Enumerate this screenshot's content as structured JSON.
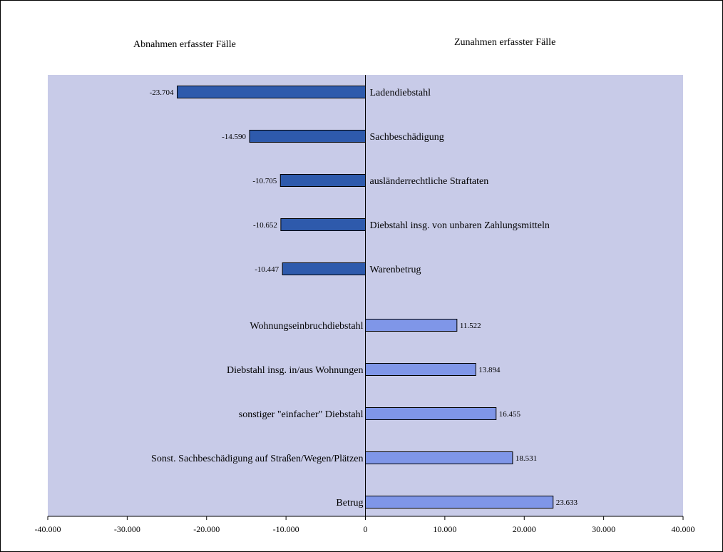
{
  "chart_data": {
    "type": "bar",
    "orientation": "horizontal",
    "title": "",
    "left_heading": "Abnahmen erfasster Fälle",
    "right_heading": "Zunahmen erfasster Fälle",
    "xlim": [
      -40000,
      40000
    ],
    "xticks": [
      -40000,
      -30000,
      -20000,
      -10000,
      0,
      10000,
      20000,
      30000,
      40000
    ],
    "xtick_labels": [
      "-40.000",
      "-30.000",
      "-20.000",
      "-10.000",
      "0",
      "10.000",
      "20.000",
      "30.000",
      "40.000"
    ],
    "grid": false,
    "categories": [
      "Ladendiebstahl",
      "Sachbeschädigung",
      "ausländerrechtliche Straftaten",
      "Diebstahl insg. von unbaren Zahlungsmitteln",
      "Warenbetrug",
      "Wohnungseinbruchdiebstahl",
      "Diebstahl insg. in/aus Wohnungen",
      "sonstiger \"einfacher\" Diebstahl",
      "Sonst. Sachbeschädigung auf  Straßen/Wegen/Plätzen",
      "Betrug"
    ],
    "values": [
      -23704,
      -14590,
      -10705,
      -10652,
      -10447,
      11522,
      13894,
      16455,
      18531,
      23633
    ],
    "value_labels": [
      "-23.704",
      "-14.590",
      "-10.705",
      "-10.652",
      "-10.447",
      "11.522",
      "13.894",
      "16.455",
      "18.531",
      "23.633"
    ],
    "colors": {
      "plot_background": "#c8cbe8",
      "decrease_bar": "#2e5aac",
      "increase_bar": "#7f96e8",
      "bar_outline": "#000000"
    }
  }
}
